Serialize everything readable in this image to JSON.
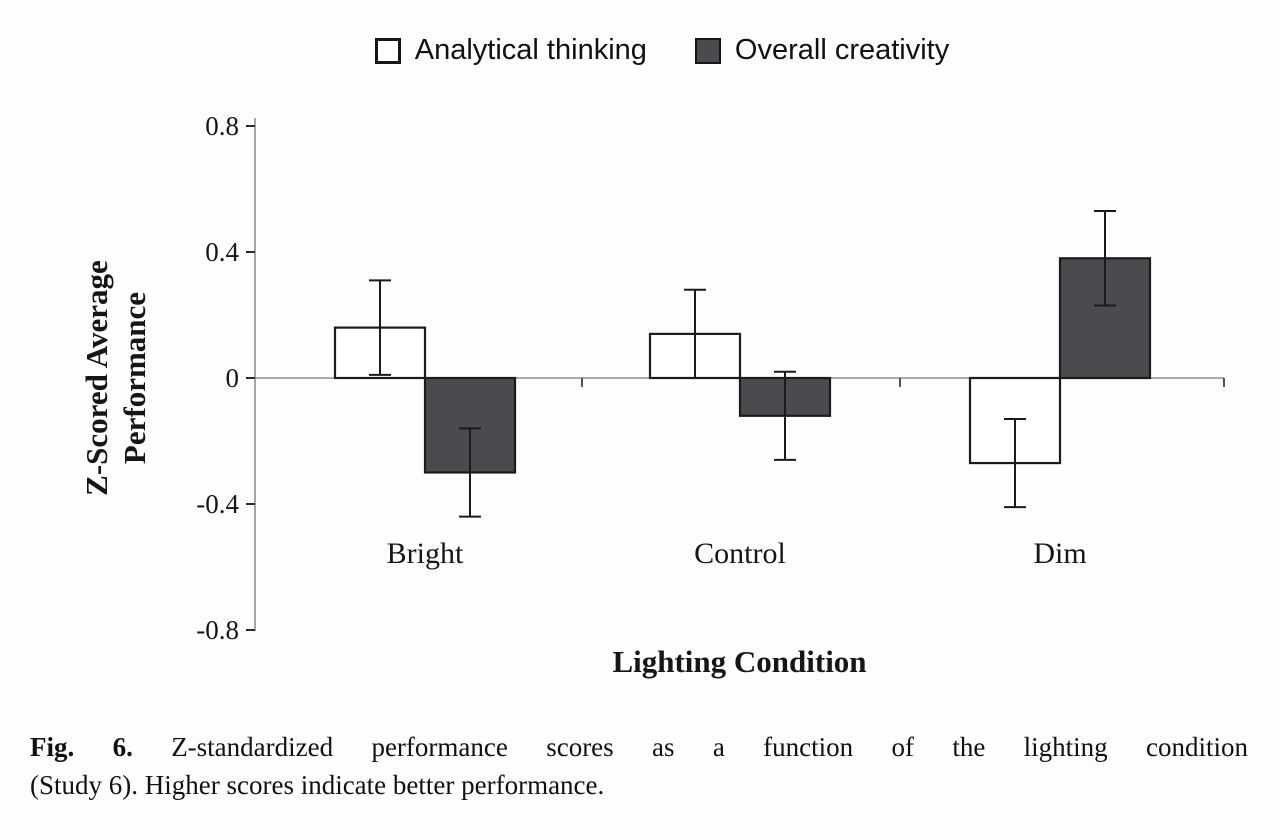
{
  "figure": {
    "legend": [
      {
        "label": "Analytical thinking",
        "swatch": "white-outline"
      },
      {
        "label": "Overall creativity",
        "swatch": "dark-fill"
      }
    ],
    "y_axis_title_line1": "Z-Scored Average",
    "y_axis_title_line2": "Performance",
    "x_axis_title": "Lighting Condition"
  },
  "caption": {
    "prefix": "Fig. 6.",
    "line1_rest": "Z-standardized performance scores as a function of the lighting condition",
    "line2": "(Study 6). Higher scores indicate better performance."
  },
  "chart_data": {
    "type": "bar",
    "title": "",
    "categories": [
      "Bright",
      "Control",
      "Dim"
    ],
    "series": [
      {
        "name": "Analytical thinking",
        "values": [
          0.16,
          0.14,
          -0.27
        ],
        "errors": [
          0.15,
          0.14,
          0.14
        ],
        "fill": "#ffffff"
      },
      {
        "name": "Overall creativity",
        "values": [
          -0.3,
          -0.12,
          0.38
        ],
        "errors": [
          0.14,
          0.14,
          0.15
        ],
        "fill": "#4b4b4f"
      }
    ],
    "xlabel": "Lighting Condition",
    "ylabel": "Z-Scored Average Performance",
    "ylim": [
      -0.8,
      0.8
    ],
    "y_ticks": [
      0.8,
      0.4,
      0,
      -0.4,
      -0.8
    ],
    "y_tick_labels": [
      "0.8",
      "0.4",
      "0",
      "-0.4",
      "-0.8"
    ],
    "legend_position": "top",
    "grid": false,
    "error_bars": true,
    "colors": {
      "analytical_fill": "#ffffff",
      "creativity_fill": "#4b4b4f",
      "bar_stroke": "#1b1b1b",
      "axis": "#909090",
      "tick": "#2b2b2b",
      "error_bar": "#1b1b1b"
    }
  }
}
